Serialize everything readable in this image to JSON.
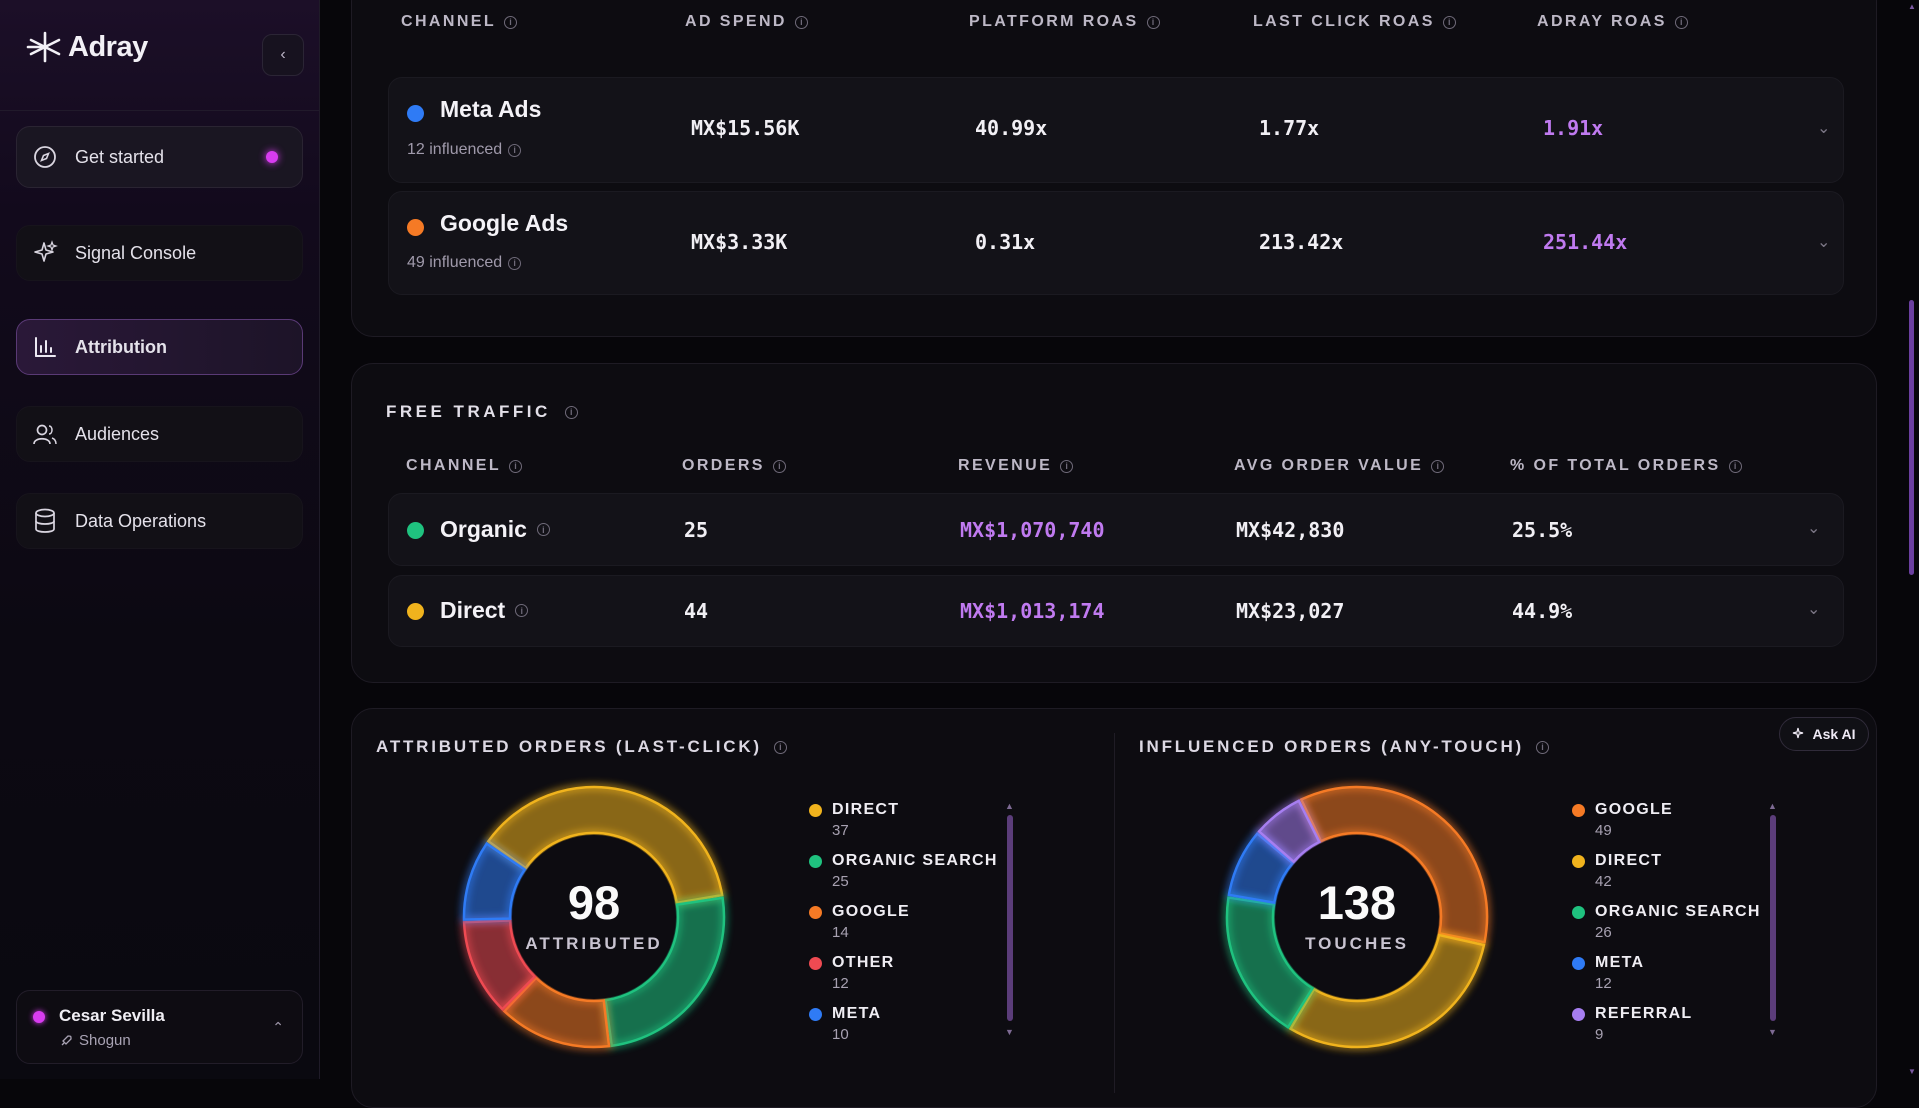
{
  "sidebar": {
    "brand": "Adray",
    "nav": [
      {
        "label": "Get started",
        "icon": "compass-icon"
      },
      {
        "label": "Signal Console",
        "icon": "sparkle-icon"
      },
      {
        "label": "Attribution",
        "icon": "bar-chart-icon"
      },
      {
        "label": "Audiences",
        "icon": "users-icon"
      },
      {
        "label": "Data Operations",
        "icon": "database-icon"
      }
    ],
    "user": {
      "name": "Cesar Sevilla",
      "org": "Shogun"
    }
  },
  "paid": {
    "headers": {
      "channel": "CHANNEL",
      "spend": "AD SPEND",
      "platform_roas": "PLATFORM ROAS",
      "last_click_roas": "LAST CLICK ROAS",
      "adray_roas": "ADRAY ROAS"
    },
    "rows": [
      {
        "name": "Meta Ads",
        "influenced": "12 influenced",
        "spend": "MX$15.56K",
        "platform_roas": "40.99x",
        "last_click_roas": "1.77x",
        "adray_roas": "1.91x",
        "color": "#2f7bf5"
      },
      {
        "name": "Google Ads",
        "influenced": "49 influenced",
        "spend": "MX$3.33K",
        "platform_roas": "0.31x",
        "last_click_roas": "213.42x",
        "adray_roas": "251.44x",
        "color": "#f57a25"
      }
    ]
  },
  "free": {
    "title": "FREE TRAFFIC",
    "headers": {
      "channel": "CHANNEL",
      "orders": "ORDERS",
      "revenue": "REVENUE",
      "aov": "AVG ORDER VALUE",
      "pct": "% OF TOTAL ORDERS"
    },
    "rows": [
      {
        "name": "Organic",
        "orders": "25",
        "revenue": "MX$1,070,740",
        "aov": "MX$42,830",
        "pct": "25.5%",
        "color": "#1fc27f"
      },
      {
        "name": "Direct",
        "orders": "44",
        "revenue": "MX$1,013,174",
        "aov": "MX$23,027",
        "pct": "44.9%",
        "color": "#f0b31d"
      }
    ]
  },
  "charts": {
    "ask_ai": "Ask AI",
    "attributed": {
      "title": "ATTRIBUTED ORDERS (LAST-CLICK)",
      "total": "98",
      "total_label": "ATTRIBUTED",
      "legend": [
        {
          "label": "DIRECT",
          "value": "37",
          "color": "#f0b31d"
        },
        {
          "label": "ORGANIC SEARCH",
          "value": "25",
          "color": "#1fc27f"
        },
        {
          "label": "GOOGLE",
          "value": "14",
          "color": "#f57a25"
        },
        {
          "label": "OTHER",
          "value": "12",
          "color": "#ee4a52"
        },
        {
          "label": "META",
          "value": "10",
          "color": "#2f7bf5"
        }
      ]
    },
    "influenced": {
      "title": "INFLUENCED ORDERS (ANY-TOUCH)",
      "total": "138",
      "total_label": "TOUCHES",
      "legend": [
        {
          "label": "GOOGLE",
          "value": "49",
          "color": "#f57a25"
        },
        {
          "label": "DIRECT",
          "value": "42",
          "color": "#f0b31d"
        },
        {
          "label": "ORGANIC SEARCH",
          "value": "26",
          "color": "#1fc27f"
        },
        {
          "label": "META",
          "value": "12",
          "color": "#2f7bf5"
        },
        {
          "label": "REFERRAL",
          "value": "9",
          "color": "#a67ef0"
        }
      ]
    }
  },
  "chart_data": [
    {
      "type": "pie",
      "title": "ATTRIBUTED ORDERS (LAST-CLICK)",
      "categories": [
        "DIRECT",
        "ORGANIC SEARCH",
        "GOOGLE",
        "OTHER",
        "META"
      ],
      "values": [
        37,
        25,
        14,
        12,
        10
      ],
      "colors": [
        "#f0b31d",
        "#1fc27f",
        "#f57a25",
        "#ee4a52",
        "#2f7bf5"
      ]
    },
    {
      "type": "pie",
      "title": "INFLUENCED ORDERS (ANY-TOUCH)",
      "categories": [
        "GOOGLE",
        "DIRECT",
        "ORGANIC SEARCH",
        "META",
        "REFERRAL"
      ],
      "values": [
        49,
        42,
        26,
        12,
        9
      ],
      "colors": [
        "#f57a25",
        "#f0b31d",
        "#1fc27f",
        "#2f7bf5",
        "#a67ef0"
      ]
    }
  ]
}
